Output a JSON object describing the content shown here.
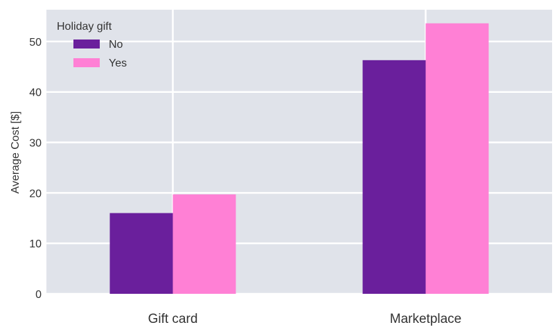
{
  "chart_data": {
    "type": "bar",
    "categories": [
      "Gift card",
      "Marketplace"
    ],
    "series": [
      {
        "name": "No",
        "values": [
          16.0,
          46.3
        ],
        "color": "#6a1f9c"
      },
      {
        "name": "Yes",
        "values": [
          19.7,
          53.6
        ],
        "color": "#ff80d5"
      }
    ],
    "ylabel": "Average Cost [$]",
    "xlabel": "",
    "ylim": [
      0,
      56.3
    ],
    "yticks": [
      0,
      10,
      20,
      30,
      40,
      50
    ],
    "grid": true,
    "legend": {
      "title": "Holiday gift",
      "placement": "top-left"
    },
    "background": "#e0e3ea",
    "grid_color": "#ffffff"
  }
}
